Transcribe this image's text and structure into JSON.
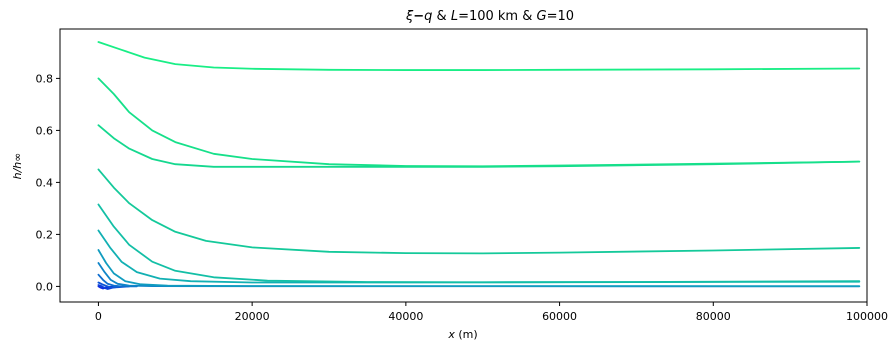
{
  "chart_data": {
    "type": "line",
    "title": "ξ − q & L=100 km & G=10",
    "title_parts": {
      "xi": "ξ",
      "minus": "−",
      "q": "q",
      "amp1": " & ",
      "L": "L",
      "L_value": "=100 km",
      "amp2": " & ",
      "G": "G",
      "G_value": "=10"
    },
    "xlabel": "x (m)",
    "xlabel_parts": {
      "var": "x",
      "unit": " (m)"
    },
    "ylabel": "h/h∞",
    "xlim": [
      -5000,
      100000
    ],
    "ylim": [
      -0.06,
      0.99
    ],
    "xticks": [
      0,
      20000,
      40000,
      60000,
      80000,
      100000
    ],
    "xtick_labels": [
      "0",
      "20000",
      "40000",
      "60000",
      "80000",
      "100000"
    ],
    "yticks": [
      0.0,
      0.2,
      0.4,
      0.6,
      0.8
    ],
    "ytick_labels": [
      "0.0",
      "0.2",
      "0.4",
      "0.6",
      "0.8"
    ],
    "grid": false,
    "legend": "none",
    "series": [
      {
        "color": "#0d2ae0",
        "x": [
          0,
          300,
          600,
          1000,
          1500,
          2500
        ],
        "y": [
          0.0,
          -0.005,
          -0.008,
          -0.004,
          -0.002,
          0.0
        ]
      },
      {
        "color": "#0d3fdc",
        "x": [
          0,
          400,
          800,
          1200,
          1800,
          3000
        ],
        "y": [
          0.005,
          0.001,
          -0.006,
          -0.01,
          -0.005,
          0.0
        ]
      },
      {
        "color": "#0e56d6",
        "x": [
          0,
          500,
          1000,
          1600,
          2500,
          4000
        ],
        "y": [
          0.015,
          0.008,
          0.002,
          -0.004,
          -0.003,
          0.0
        ]
      },
      {
        "color": "#0f6ecf",
        "x": [
          0,
          600,
          1200,
          2000,
          3000,
          5000
        ],
        "y": [
          0.045,
          0.025,
          0.01,
          0.003,
          0.0,
          0.0
        ]
      },
      {
        "color": "#1085c8",
        "x": [
          0,
          800,
          1600,
          2500,
          4000,
          7000,
          99000
        ],
        "y": [
          0.09,
          0.055,
          0.025,
          0.01,
          0.003,
          0.001,
          0.0
        ]
      },
      {
        "color": "#119cbf",
        "x": [
          0,
          1000,
          2000,
          3500,
          5500,
          9000,
          20000,
          99000
        ],
        "y": [
          0.14,
          0.09,
          0.05,
          0.02,
          0.008,
          0.003,
          0.001,
          0.001
        ]
      },
      {
        "color": "#12b0b3",
        "x": [
          0,
          1500,
          3000,
          5000,
          8000,
          12000,
          20000,
          40000,
          99000
        ],
        "y": [
          0.215,
          0.15,
          0.095,
          0.055,
          0.03,
          0.02,
          0.015,
          0.015,
          0.018
        ]
      },
      {
        "color": "#13bfa6",
        "x": [
          0,
          2000,
          4000,
          7000,
          10000,
          15000,
          22000,
          35000,
          50000,
          70000,
          99000
        ],
        "y": [
          0.315,
          0.23,
          0.16,
          0.095,
          0.06,
          0.035,
          0.022,
          0.017,
          0.016,
          0.017,
          0.02
        ]
      },
      {
        "color": "#14c99a",
        "x": [
          0,
          2000,
          4000,
          7000,
          10000,
          14000,
          20000,
          30000,
          40000,
          50000,
          60000,
          80000,
          99000
        ],
        "y": [
          0.45,
          0.38,
          0.32,
          0.255,
          0.21,
          0.175,
          0.15,
          0.133,
          0.128,
          0.127,
          0.13,
          0.138,
          0.148
        ]
      },
      {
        "color": "#15d88f",
        "x": [
          0,
          2000,
          4000,
          7000,
          10000,
          15000,
          20000,
          30000,
          40000,
          50000,
          60000,
          80000,
          99000
        ],
        "y": [
          0.62,
          0.57,
          0.53,
          0.49,
          0.47,
          0.46,
          0.46,
          0.46,
          0.46,
          0.46,
          0.462,
          0.47,
          0.48
        ]
      },
      {
        "color": "#16e08a",
        "x": [
          0,
          2000,
          4000,
          7000,
          10000,
          15000,
          20000,
          30000,
          40000,
          50000,
          60000,
          80000,
          99000
        ],
        "y": [
          0.8,
          0.74,
          0.67,
          0.6,
          0.555,
          0.51,
          0.49,
          0.47,
          0.463,
          0.462,
          0.465,
          0.472,
          0.48
        ]
      },
      {
        "color": "#19ee86",
        "x": [
          0,
          3000,
          6000,
          10000,
          15000,
          20000,
          30000,
          40000,
          50000,
          60000,
          80000,
          99000
        ],
        "y": [
          0.94,
          0.91,
          0.88,
          0.855,
          0.842,
          0.837,
          0.833,
          0.832,
          0.832,
          0.833,
          0.835,
          0.838
        ]
      }
    ]
  }
}
